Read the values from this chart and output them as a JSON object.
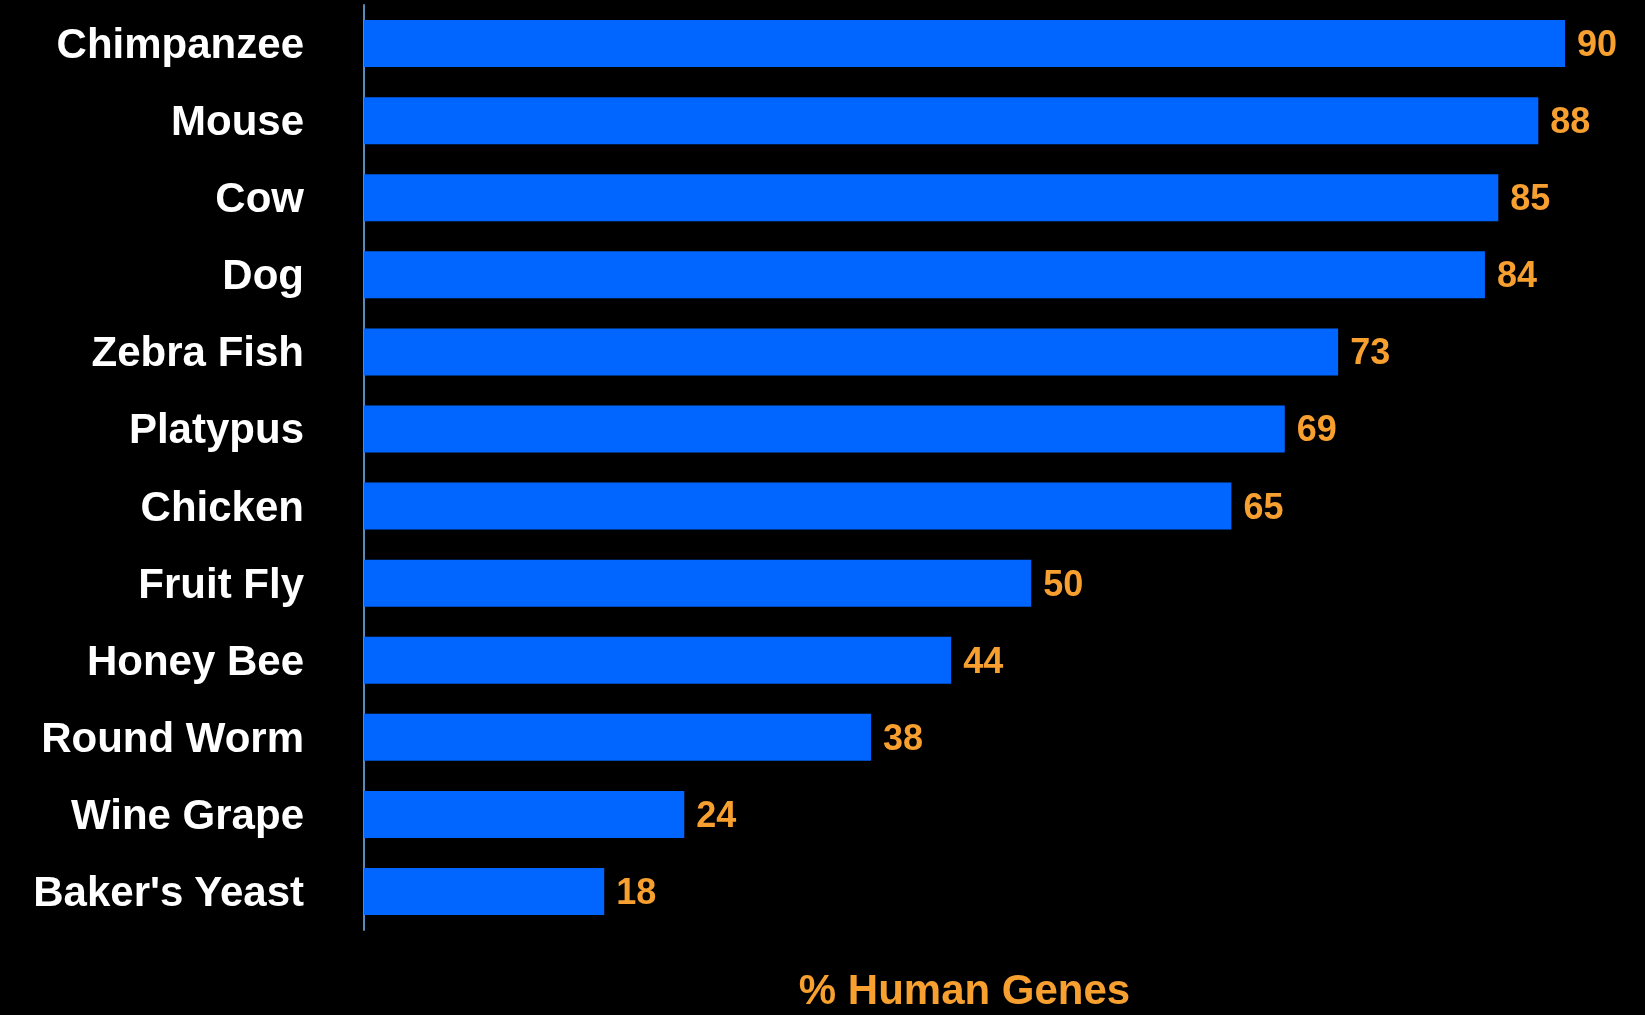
{
  "chart_data": {
    "type": "bar",
    "orientation": "horizontal",
    "xlabel": "% Human Genes",
    "categories": [
      "Chimpanzee",
      "Mouse",
      "Cow",
      "Dog",
      "Zebra Fish",
      "Platypus",
      "Chicken",
      "Fruit Fly",
      "Honey Bee",
      "Round Worm",
      "Wine Grape",
      "Baker's Yeast"
    ],
    "values": [
      90,
      88,
      85,
      84,
      73,
      69,
      65,
      50,
      44,
      38,
      24,
      18
    ],
    "color": "#0066ff",
    "data_labels": true
  }
}
